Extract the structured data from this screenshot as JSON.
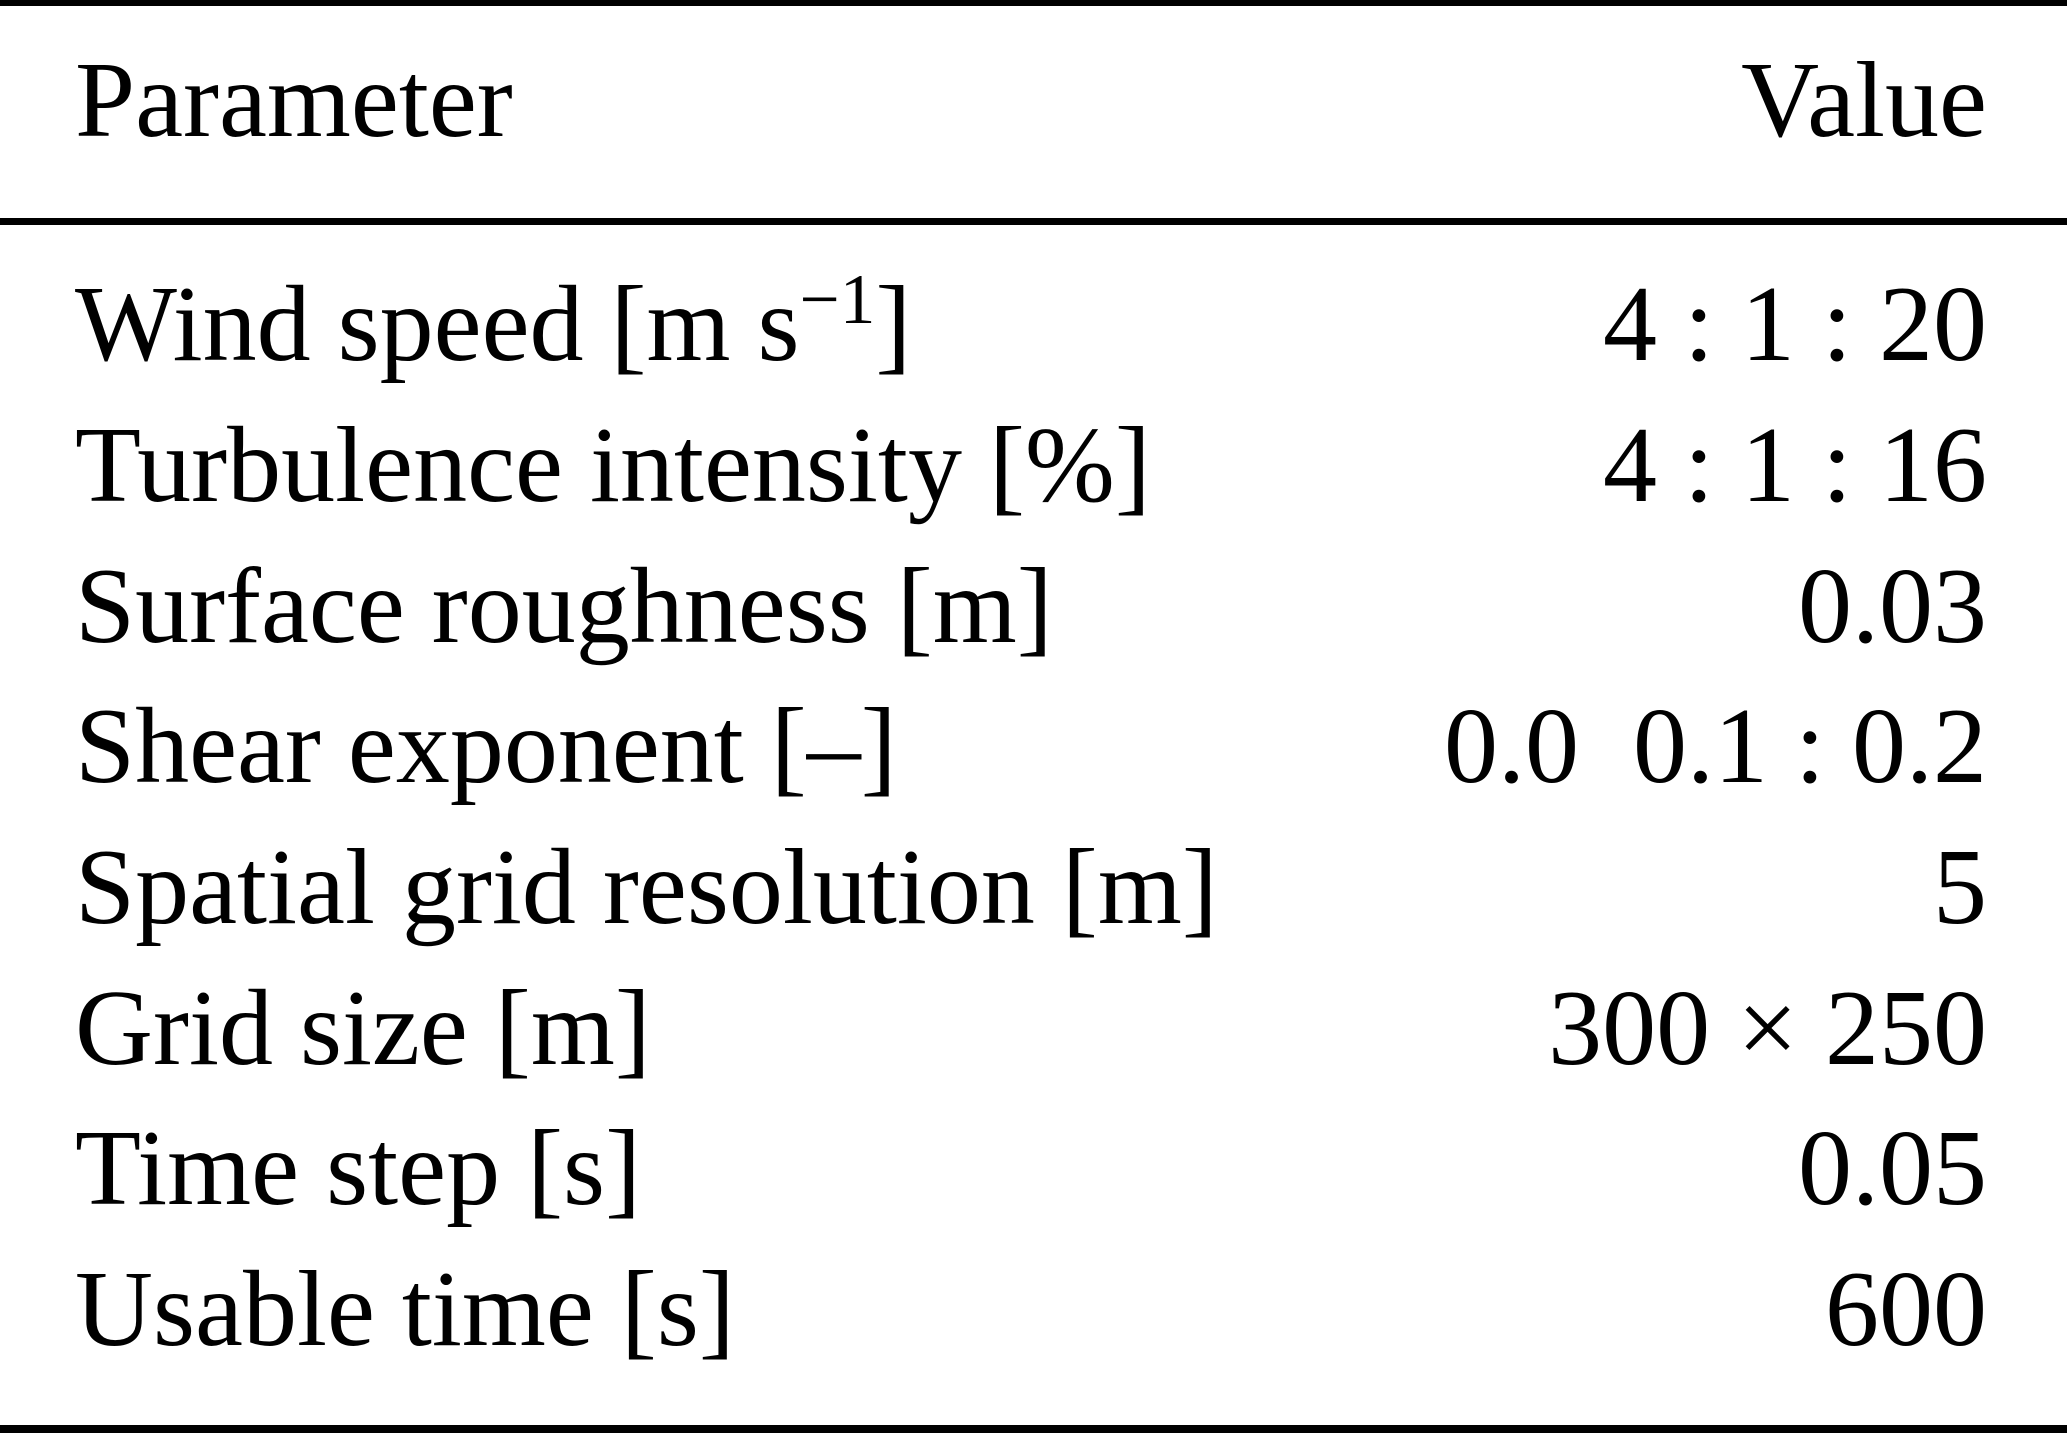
{
  "colors": {
    "background": "#ffffff",
    "text": "#000000",
    "rule": "#000000"
  },
  "table": {
    "headers": {
      "param": "Parameter",
      "value": "Value"
    },
    "rows": [
      {
        "param": "Wind speed [m s",
        "param_sup": "−1",
        "param_end": "]",
        "value": "4 : 1 : 20"
      },
      {
        "param": "Turbulence intensity [%]",
        "param_sup": "",
        "param_end": "",
        "value": "4 : 1 : 16"
      },
      {
        "param": "Surface roughness [m]",
        "param_sup": "",
        "param_end": "",
        "value": "0.03"
      },
      {
        "param": "Shear exponent [–]",
        "param_sup": "",
        "param_end": "",
        "value": "0.0  0.1 : 0.2"
      },
      {
        "param": "Spatial grid resolution [m]",
        "param_sup": "",
        "param_end": "",
        "value": "5"
      },
      {
        "param": "Grid size [m]",
        "param_sup": "",
        "param_end": "",
        "value": "300 × 250"
      },
      {
        "param": "Time step [s]",
        "param_sup": "",
        "param_end": "",
        "value": "0.05"
      },
      {
        "param": "Usable time [s]",
        "param_sup": "",
        "param_end": "",
        "value": "600"
      }
    ]
  },
  "chart_data": {
    "type": "table",
    "columns": [
      "Parameter",
      "Value"
    ],
    "rows": [
      [
        "Wind speed [m s−1]",
        "4 : 1 : 20"
      ],
      [
        "Turbulence intensity [%]",
        "4 : 1 : 16"
      ],
      [
        "Surface roughness [m]",
        "0.03"
      ],
      [
        "Shear exponent [–]",
        "0.0 0.1 : 0.2"
      ],
      [
        "Spatial grid resolution [m]",
        "5"
      ],
      [
        "Grid size [m]",
        "300 × 250"
      ],
      [
        "Time step [s]",
        "0.05"
      ],
      [
        "Usable time [s]",
        "600"
      ]
    ]
  }
}
